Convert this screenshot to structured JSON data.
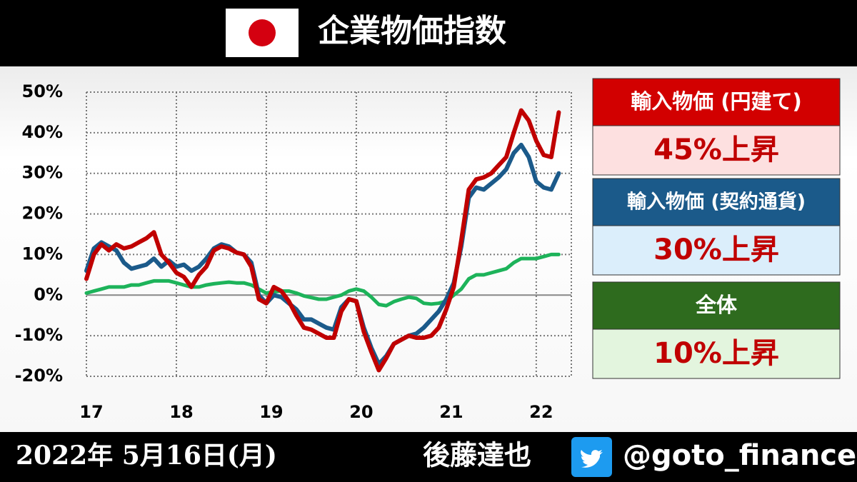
{
  "header": {
    "title": "企業物価指数"
  },
  "chart_data": {
    "type": "line",
    "x": [
      17,
      17.083,
      17.167,
      17.25,
      17.333,
      17.417,
      17.5,
      17.583,
      17.667,
      17.75,
      17.833,
      17.917,
      18,
      18.083,
      18.167,
      18.25,
      18.333,
      18.417,
      18.5,
      18.583,
      18.667,
      18.75,
      18.833,
      18.917,
      19,
      19.083,
      19.167,
      19.25,
      19.333,
      19.417,
      19.5,
      19.583,
      19.667,
      19.75,
      19.833,
      19.917,
      20,
      20.083,
      20.167,
      20.25,
      20.333,
      20.417,
      20.5,
      20.583,
      20.667,
      20.75,
      20.833,
      20.917,
      21,
      21.083,
      21.167,
      21.25,
      21.333,
      21.417,
      21.5,
      21.583,
      21.667,
      21.75,
      21.833,
      21.917,
      22,
      22.083,
      22.167,
      22.25
    ],
    "series": [
      {
        "name": "全体",
        "label": "10%上昇",
        "color": "#1db35a",
        "values": [
          0.5,
          1,
          1.5,
          2,
          2,
          2,
          2.5,
          2.5,
          3,
          3.5,
          3.5,
          3.5,
          3,
          2.5,
          2,
          2,
          2.5,
          2.8,
          3,
          3.2,
          3,
          3,
          2.5,
          1.5,
          0.5,
          0.8,
          1,
          1,
          0.5,
          -0.2,
          -0.6,
          -1,
          -1,
          -0.5,
          0,
          1,
          1.5,
          1,
          -0.5,
          -2.3,
          -2.6,
          -1.6,
          -1,
          -0.5,
          -0.8,
          -2,
          -2.2,
          -2,
          -1.5,
          0,
          1.5,
          4,
          5,
          5,
          5.5,
          6,
          6.5,
          8,
          9,
          9,
          9,
          9.5,
          10,
          10
        ]
      },
      {
        "name": "輸入物価 (契約通貨)",
        "label": "30%上昇",
        "color": "#1b5a8a",
        "values": [
          6,
          11.5,
          13,
          12,
          11,
          8,
          6.5,
          7,
          7.5,
          9,
          7,
          8.5,
          7,
          7.5,
          6,
          7,
          9,
          11.5,
          12.5,
          12,
          10.5,
          10,
          8,
          0,
          -2,
          0,
          -0.5,
          -2,
          -3.5,
          -6,
          -6,
          -7,
          -8,
          -8.5,
          -3,
          -1,
          -1.5,
          -8,
          -13,
          -17,
          -15,
          -12,
          -11,
          -10,
          -9.5,
          -8,
          -6,
          -4,
          -1,
          3,
          12,
          24,
          26.5,
          26,
          27.5,
          29,
          31,
          35,
          37,
          34,
          28,
          26.5,
          26,
          30
        ]
      },
      {
        "name": "輸入物価 (円建て)",
        "label": "45%上昇",
        "color": "#c00000",
        "values": [
          4,
          10,
          12.5,
          11,
          12.5,
          11.5,
          12,
          13,
          14,
          15.5,
          10,
          8,
          5.5,
          4.5,
          2,
          5,
          7,
          11,
          12,
          11.5,
          10.5,
          10,
          7,
          -1,
          -2,
          2,
          1,
          -1.5,
          -5,
          -8,
          -8.5,
          -9.5,
          -10.5,
          -10.5,
          -4,
          -1,
          -1.5,
          -9,
          -14,
          -18.5,
          -15.5,
          -12,
          -11,
          -10,
          -10.5,
          -10.5,
          -10,
          -8,
          -3.5,
          2,
          13.5,
          26,
          28.5,
          29,
          30,
          32,
          34,
          40,
          45.5,
          43,
          38,
          34.5,
          34,
          45
        ]
      }
    ],
    "xlim": [
      17,
      22.39
    ],
    "xticks": [
      17,
      18,
      19,
      20,
      21,
      22
    ],
    "ylim": [
      -20,
      50
    ],
    "yticks": [
      {
        "value": -20,
        "label": "-20%"
      },
      {
        "value": -10,
        "label": "-10%"
      },
      {
        "value": 0,
        "label": "0%"
      },
      {
        "value": 10,
        "label": "10%"
      },
      {
        "value": 20,
        "label": "20%"
      },
      {
        "value": 30,
        "label": "30%"
      },
      {
        "value": 40,
        "label": "40%"
      },
      {
        "value": 50,
        "label": "50%"
      }
    ],
    "grid": true
  },
  "footer": {
    "date": "2022年 5月16日(月)",
    "author": "後藤達也",
    "handle": "@goto_finance"
  }
}
